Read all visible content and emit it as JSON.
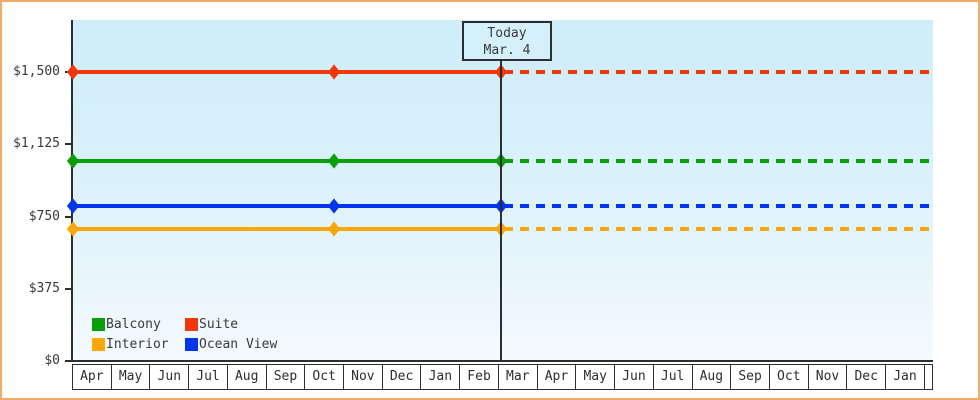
{
  "window": {
    "background_color": "#ffffff",
    "border_color": "#f0ab66",
    "plot_bg_top_color": "#cfedfa",
    "plot_bg_bottom_color": "#f4fbfe",
    "axis_color": "#2e2e2e",
    "text_color": "#3a3a3a"
  },
  "annotation": {
    "title": "Today",
    "date": "Mar. 4"
  },
  "y_axis": {
    "tick_labels": [
      "$0",
      "$375",
      "$750",
      "$1,125",
      "$1,500"
    ],
    "tick_values": [
      0,
      375,
      750,
      1125,
      1500
    ],
    "min": 0,
    "max": 1500
  },
  "x_axis": {
    "months": [
      "Apr",
      "May",
      "Jun",
      "Jul",
      "Aug",
      "Sep",
      "Oct",
      "Nov",
      "Dec",
      "Jan",
      "Feb",
      "Mar",
      "Apr",
      "May",
      "Jun",
      "Jul",
      "Aug",
      "Sep",
      "Oct",
      "Nov",
      "Dec",
      "Jan"
    ]
  },
  "legend": {
    "items": [
      {
        "label": "Balcony",
        "color": "#0a9e0a"
      },
      {
        "label": "Suite",
        "color": "#f23708"
      },
      {
        "label": "Interior",
        "color": "#fca608"
      },
      {
        "label": "Ocean View",
        "color": "#0435ee"
      }
    ]
  },
  "chart_data": {
    "type": "line",
    "title": "",
    "xlabel": "",
    "ylabel": "",
    "ylim": [
      0,
      1500
    ],
    "x_domain_months": 22,
    "grid": false,
    "legend_position": "bottom-left inside plot",
    "today": {
      "label": "Today",
      "date": "Mar. 4",
      "month_offset": 11.06
    },
    "line_style_note": "solid line with diamond markers up to today, dashed projection at same price after today",
    "marker_month_offsets": [
      0,
      6.75,
      11.06
    ],
    "series": [
      {
        "name": "Suite",
        "color": "#f23708",
        "price": 1500
      },
      {
        "name": "Balcony",
        "color": "#0a9e0a",
        "price": 1040
      },
      {
        "name": "Ocean View",
        "color": "#0435ee",
        "price": 805
      },
      {
        "name": "Interior",
        "color": "#fca608",
        "price": 685
      }
    ]
  }
}
